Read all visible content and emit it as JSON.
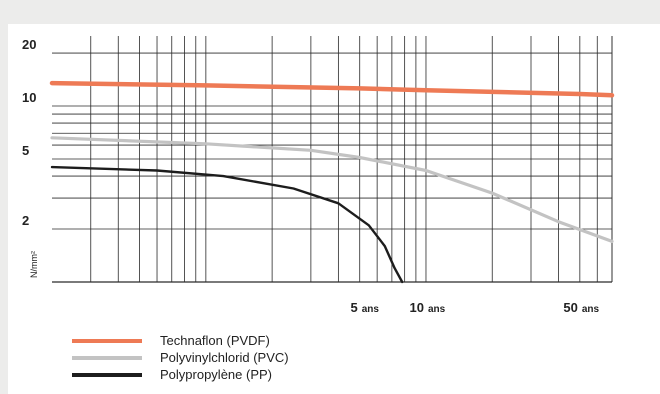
{
  "chart_data": {
    "type": "line",
    "x_scale": "log",
    "y_scale": "log",
    "xlim": [
      0.2,
      70
    ],
    "ylim": [
      1,
      25
    ],
    "grid": true,
    "ylabel": "N/mm²",
    "y_ticks": [
      {
        "value": 20,
        "label": "20"
      },
      {
        "value": 10,
        "label": "10"
      },
      {
        "value": 5,
        "label": "5"
      },
      {
        "value": 2,
        "label": "2"
      }
    ],
    "x_ticks": [
      {
        "value": 5,
        "label": "5",
        "unit": "ans"
      },
      {
        "value": 10,
        "label": "10",
        "unit": "ans"
      },
      {
        "value": 50,
        "label": "50",
        "unit": "ans"
      }
    ],
    "legend_position": "bottom-left",
    "series": [
      {
        "name": "Technaflon (PVDF)",
        "color": "#ee7a55",
        "x": [
          0.2,
          1,
          5,
          10,
          50,
          70
        ],
        "y": [
          13.5,
          13.1,
          12.6,
          12.3,
          11.7,
          11.5
        ]
      },
      {
        "name": "Polyvinylchlorid (PVC)",
        "color": "#c3c3c3",
        "x": [
          0.2,
          1,
          3,
          5,
          10,
          20,
          40,
          70
        ],
        "y": [
          6.6,
          6.1,
          5.6,
          5.1,
          4.3,
          3.2,
          2.2,
          1.7
        ]
      },
      {
        "name": "Polypropylène (PP)",
        "color": "#1d1d1d",
        "x": [
          0.2,
          0.6,
          1.2,
          2.5,
          4,
          5.5,
          6.5,
          7.2,
          7.8
        ],
        "y": [
          4.5,
          4.3,
          4.0,
          3.4,
          2.8,
          2.1,
          1.6,
          1.2,
          1.0
        ]
      }
    ]
  }
}
